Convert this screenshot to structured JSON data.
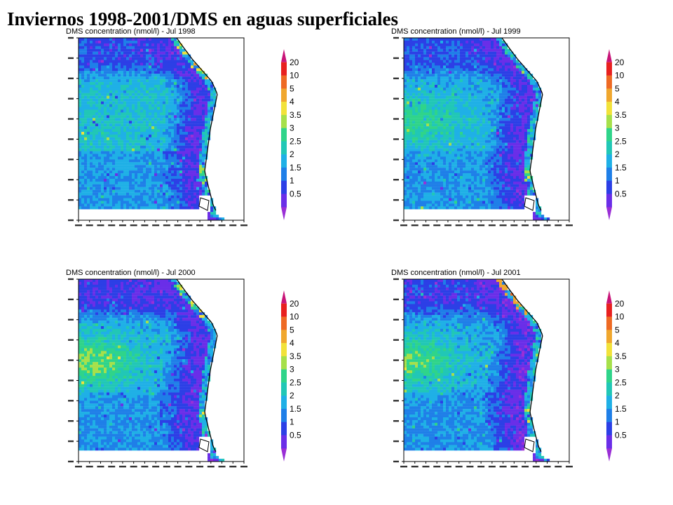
{
  "page_title": "Inviernos 1998-2001/DMS en aguas superficiales",
  "colorbar": {
    "labels": [
      "20",
      "10",
      "5",
      "4",
      "3.5",
      "3",
      "2.5",
      "2",
      "1.5",
      "1",
      "0.5"
    ],
    "colors": [
      "#9a2fd6",
      "#6a2ee8",
      "#2c3fe6",
      "#1f7fe8",
      "#1fb0e6",
      "#21c7b6",
      "#2fd48a",
      "#a6e04a",
      "#f2e23a",
      "#f0a72e",
      "#ee6a24",
      "#e8201f",
      "#c81478"
    ]
  },
  "map_colors": {
    "ocean": "#1f86e8",
    "land": "#ffffff",
    "coast": "#000000"
  },
  "chart_data": [
    {
      "type": "heatmap",
      "title": "DMS concentration (nmol/l) - Jul 1998",
      "value_unit": "nmol/l",
      "levels": [
        0.5,
        1,
        1.5,
        2,
        2.5,
        3,
        3.5,
        4,
        5,
        10,
        20
      ],
      "features": {
        "north_band": 1.3,
        "equatorial_core": 2.4,
        "central_blob": 2.6,
        "south_band": 2.0,
        "coastal_min": 1.0,
        "coastal_peak": 5
      }
    },
    {
      "type": "heatmap",
      "title": "DMS concentration (nmol/l) - Jul 1999",
      "value_unit": "nmol/l",
      "levels": [
        0.5,
        1,
        1.5,
        2,
        2.5,
        3,
        3.5,
        4,
        5,
        10,
        20
      ],
      "features": {
        "north_band": 1.4,
        "equatorial_core": 2.2,
        "central_blob": 3.2,
        "south_band": 2.0,
        "coastal_min": 0.9,
        "coastal_peak": 4
      }
    },
    {
      "type": "heatmap",
      "title": "DMS concentration (nmol/l) - Jul 2000",
      "value_unit": "nmol/l",
      "levels": [
        0.5,
        1,
        1.5,
        2,
        2.5,
        3,
        3.5,
        4,
        5,
        10,
        20
      ],
      "features": {
        "north_band": 1.1,
        "equatorial_core": 2.2,
        "central_blob": 3.6,
        "south_band": 1.9,
        "coastal_min": 0.9,
        "coastal_peak": 5
      }
    },
    {
      "type": "heatmap",
      "title": "DMS concentration (nmol/l) - Jul 2001",
      "value_unit": "nmol/l",
      "levels": [
        0.5,
        1,
        1.5,
        2,
        2.5,
        3,
        3.5,
        4,
        5,
        10,
        20
      ],
      "features": {
        "north_band": 1.2,
        "equatorial_core": 2.1,
        "central_blob": 3.4,
        "south_band": 1.9,
        "coastal_min": 0.8,
        "coastal_peak": 10
      }
    }
  ]
}
